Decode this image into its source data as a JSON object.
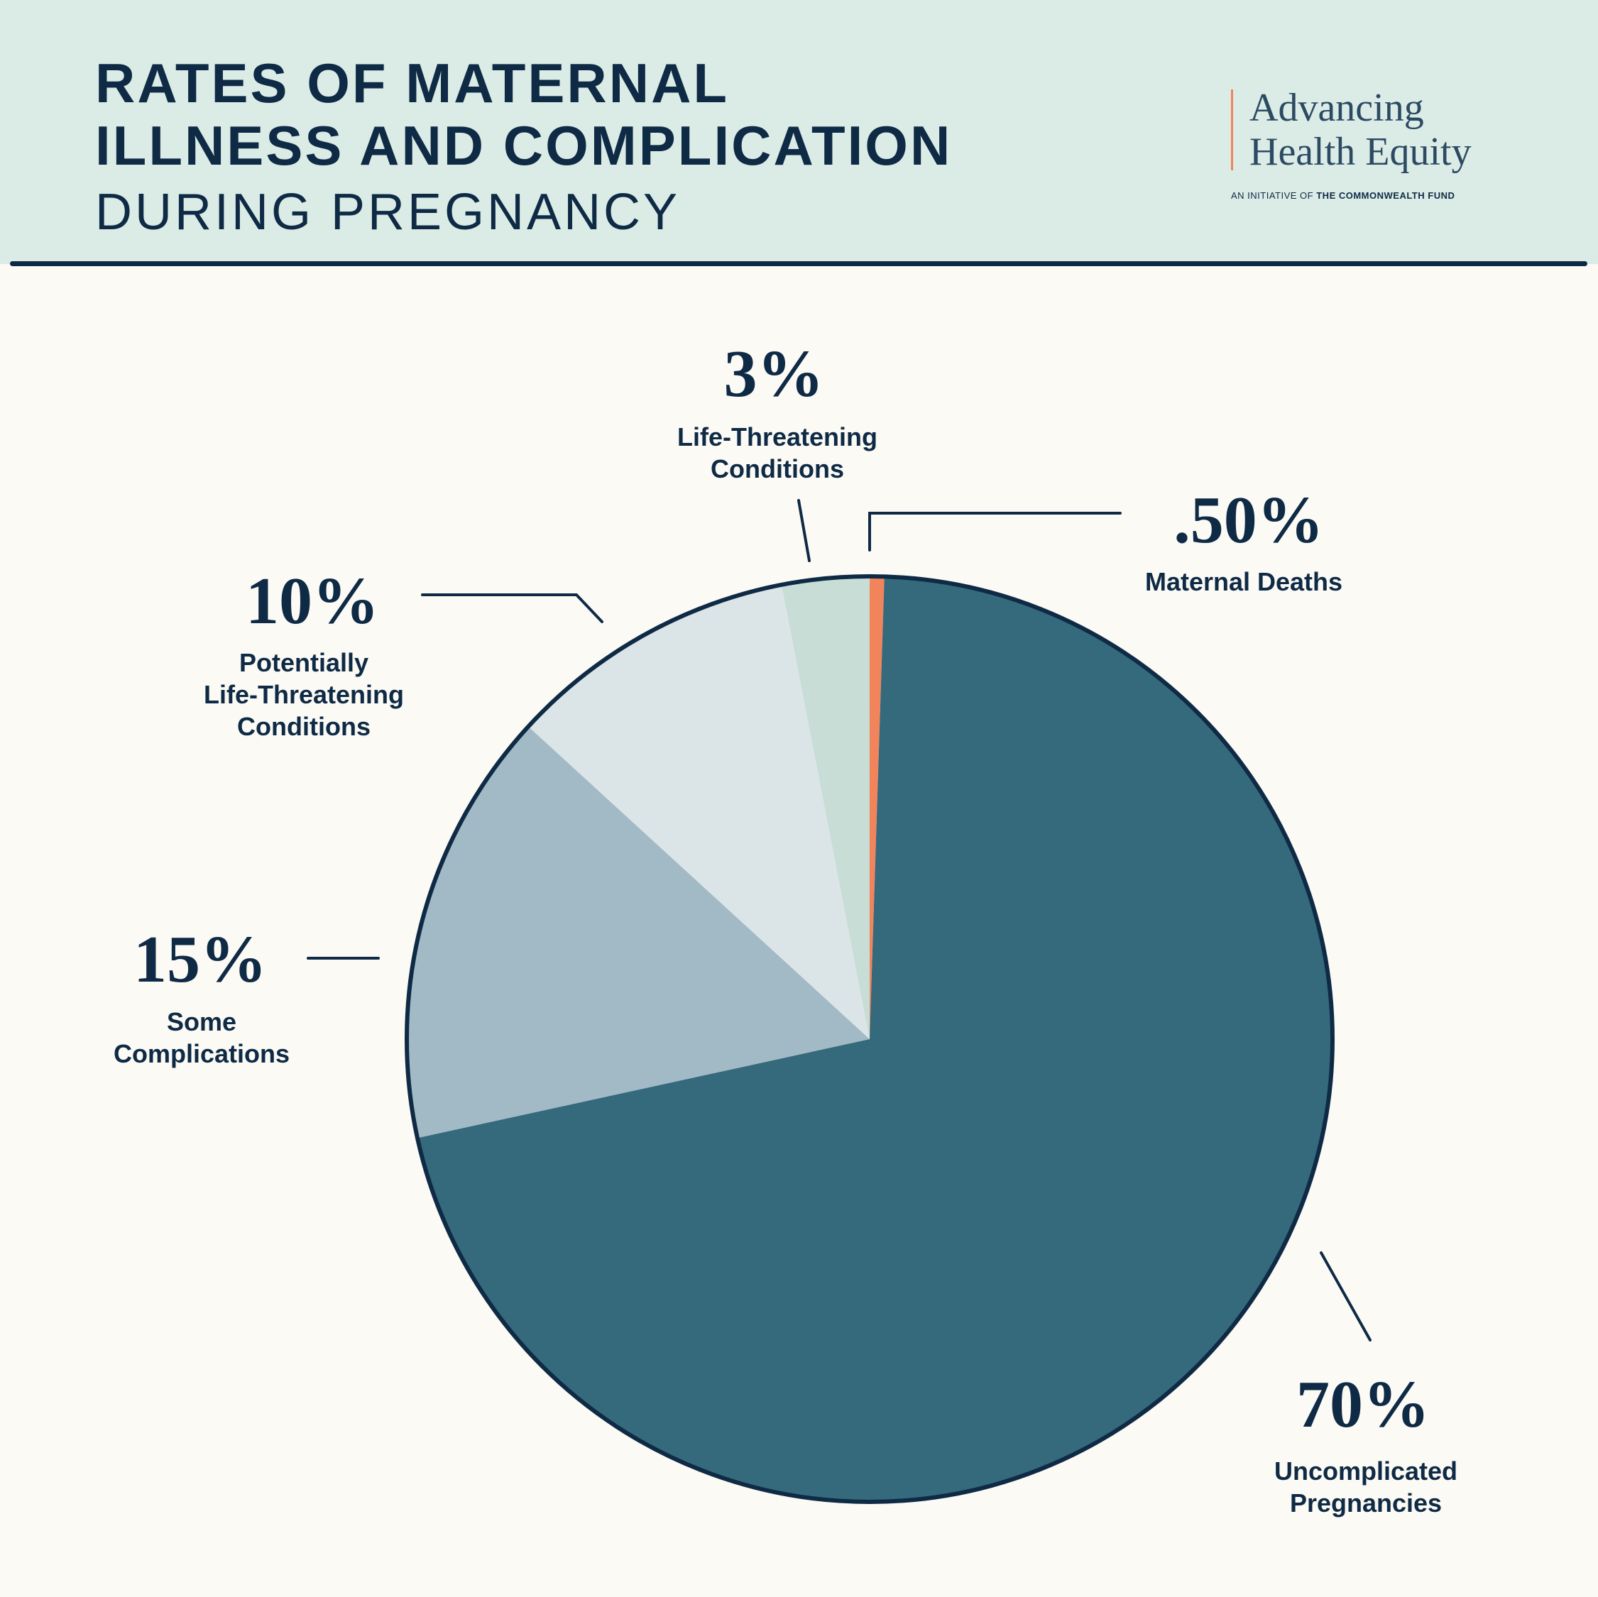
{
  "header": {
    "title_line1": "RATES OF MATERNAL",
    "title_line2": "ILLNESS AND COMPLICATION",
    "title_line3": "DURING PREGNANCY"
  },
  "logo": {
    "line1": "Advancing",
    "line2": "Health Equity",
    "tagline_prefix": "AN INITIATIVE OF",
    "tagline_org": "THE COMMONWEALTH FUND"
  },
  "colors": {
    "header_bg": "#dbece6",
    "page_bg": "#fbfaf5",
    "text": "#0f2a45",
    "accent": "#f2845c"
  },
  "chart_data": {
    "type": "pie",
    "title": "Rates of Maternal Illness and Complication During Pregnancy",
    "start": "12 o'clock, clockwise",
    "slices": [
      {
        "label": "Uncomplicated Pregnancies",
        "label_lines": [
          "Uncomplicated",
          "Pregnancies"
        ],
        "value": 70,
        "display": "70%",
        "color": "#35697c"
      },
      {
        "label": "Some Complications",
        "label_lines": [
          "Some",
          "Complications"
        ],
        "value": 15,
        "display": "15%",
        "color": "#a2b9c6"
      },
      {
        "label": "Potentially Life-Threatening Conditions",
        "label_lines": [
          "Potentially",
          "Life-Threatening",
          "Conditions"
        ],
        "value": 10,
        "display": "10%",
        "color": "#dbe4e6"
      },
      {
        "label": "Life-Threatening Conditions",
        "label_lines": [
          "Life-Threatening",
          "Conditions"
        ],
        "value": 3,
        "display": "3%",
        "color": "#c7ddd5"
      },
      {
        "label": "Maternal Deaths",
        "label_lines": [
          "Maternal Deaths"
        ],
        "value": 0.5,
        "display": ".50%",
        "color": "#f2845c"
      }
    ]
  }
}
